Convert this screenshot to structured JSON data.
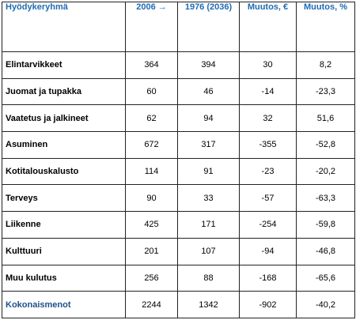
{
  "table": {
    "headers": [
      "Hyödykeryhmä",
      "2006 →",
      "1976 (2036)",
      "Muutos, €",
      "Muutos, %"
    ],
    "rows": [
      [
        "Elintarvikkeet",
        "364",
        "394",
        "30",
        "8,2"
      ],
      [
        "Juomat ja tupakka",
        "60",
        "46",
        "-14",
        "-23,3"
      ],
      [
        "Vaatetus ja jalkineet",
        "62",
        "94",
        "32",
        "51,6"
      ],
      [
        "Asuminen",
        "672",
        "317",
        "-355",
        "-52,8"
      ],
      [
        "Kotitalouskalusto",
        "114",
        "91",
        "-23",
        "-20,2"
      ],
      [
        "Terveys",
        "90",
        "33",
        "-57",
        "-63,3"
      ],
      [
        "Liikenne",
        "425",
        "171",
        "-254",
        "-59,8"
      ],
      [
        "Kulttuuri",
        "201",
        "107",
        "-94",
        "-46,8"
      ],
      [
        "Muu kulutus",
        "256",
        "88",
        "-168",
        "-65,6"
      ],
      [
        "Kokonaismenot",
        "2244",
        "1342",
        "-902",
        "-40,2"
      ]
    ]
  },
  "colors": {
    "header_text": "#1f6bb5",
    "total_label": "#1f4f8b",
    "border": "#222222"
  }
}
